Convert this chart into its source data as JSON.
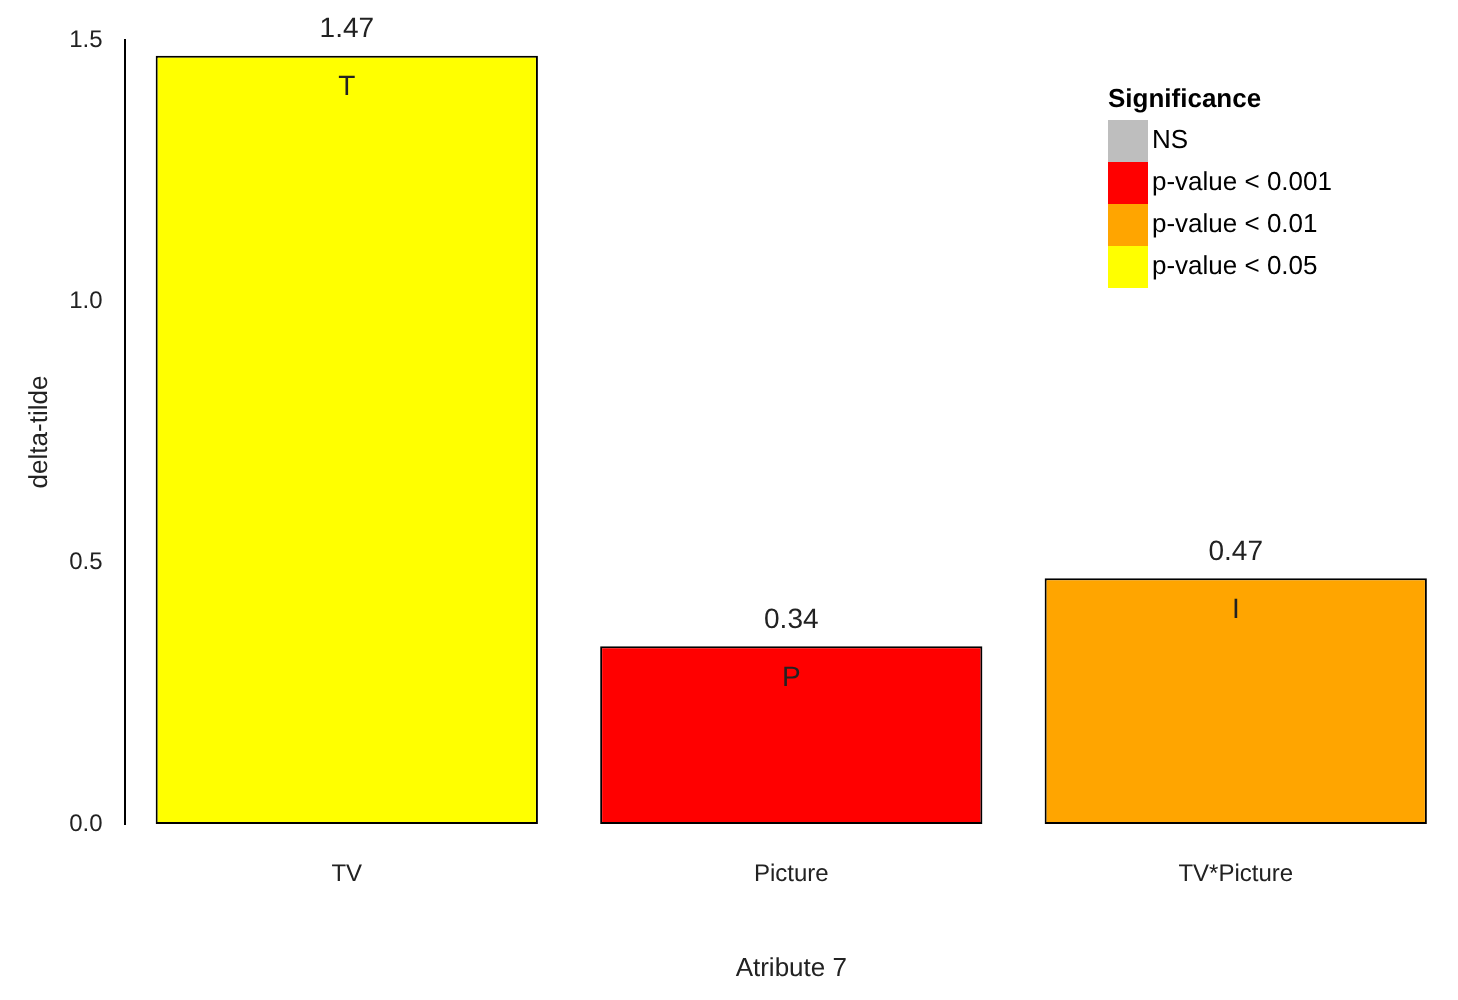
{
  "chart_data": {
    "type": "bar",
    "stacked": true,
    "xlabel": "Atribute 7",
    "ylabel": "delta-tilde",
    "legend_title": "Significance",
    "legend": "top right",
    "grid": false,
    "data_labels": true,
    "categories": [
      "TV",
      "Picture",
      "TV*Picture"
    ],
    "series": [
      {
        "name": "NS",
        "color": "#bebebe",
        "values": [
          null,
          null,
          null
        ]
      },
      {
        "name": "p-value < 0.001",
        "color": "#ff0000",
        "values": [
          null,
          0.34,
          null
        ]
      },
      {
        "name": "p-value < 0.01",
        "color": "#ffa500",
        "values": [
          null,
          null,
          0.47
        ]
      },
      {
        "name": "p-value < 0.05",
        "color": "#ffff00",
        "values": [
          1.47,
          null,
          null
        ]
      }
    ],
    "ylim": [
      0,
      1.5
    ],
    "yticks": [
      {
        "value": 0,
        "label": "0.0"
      },
      {
        "value": 0.5,
        "label": "0.5"
      },
      {
        "value": 1,
        "label": "1.0"
      },
      {
        "value": 1.5,
        "label": "1.5"
      }
    ],
    "annotations": [
      "T",
      "P",
      "I"
    ]
  }
}
